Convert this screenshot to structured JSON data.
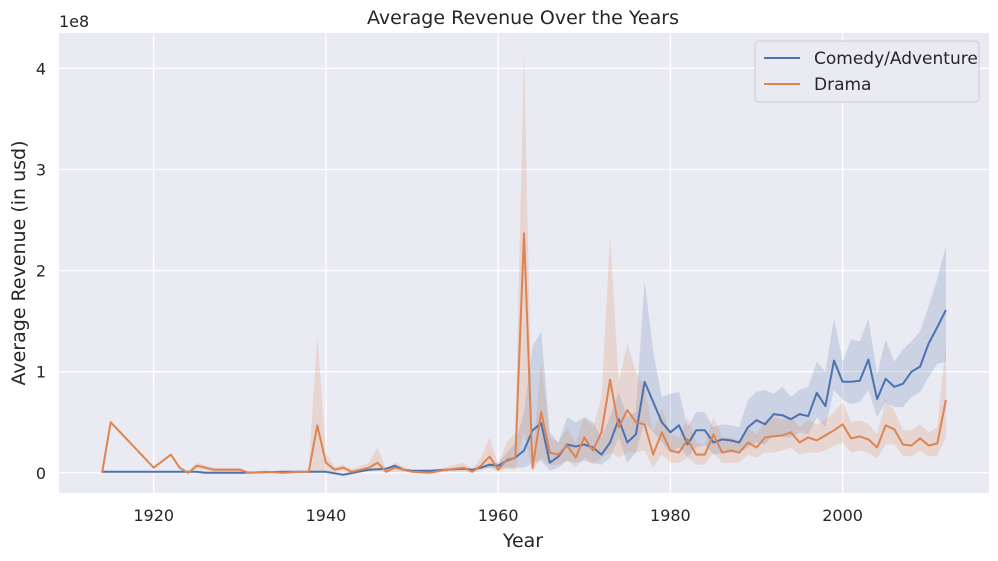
{
  "chart_data": {
    "type": "line",
    "title": "Average Revenue Over the Years",
    "xlabel": "Year",
    "ylabel": "Average Revenue (in usd)",
    "y_scale_label": "1e8",
    "y_scale": 100000000,
    "xlim": [
      1909,
      2017
    ],
    "ylim": [
      -0.2,
      4.35
    ],
    "x_ticks": [
      1920,
      1940,
      1960,
      1980,
      2000
    ],
    "y_ticks": [
      0,
      1,
      2,
      3,
      4
    ],
    "grid": true,
    "legend_position": "top-right",
    "colors": {
      "background": "#eaeaf2",
      "grid": "#ffffff",
      "text": "#262626"
    },
    "series": [
      {
        "name": "Comedy/Adventure",
        "color": "#4c72b0",
        "x": [
          1914,
          1920,
          1925,
          1926,
          1930,
          1935,
          1940,
          1942,
          1945,
          1947,
          1948,
          1949,
          1950,
          1952,
          1954,
          1956,
          1957,
          1958,
          1959,
          1960,
          1961,
          1962,
          1963,
          1964,
          1965,
          1966,
          1967,
          1968,
          1969,
          1970,
          1971,
          1972,
          1973,
          1974,
          1975,
          1976,
          1977,
          1978,
          1979,
          1980,
          1981,
          1982,
          1983,
          1984,
          1985,
          1986,
          1987,
          1988,
          1989,
          1990,
          1991,
          1992,
          1993,
          1994,
          1995,
          1996,
          1997,
          1998,
          1999,
          2000,
          2001,
          2002,
          2003,
          2004,
          2005,
          2006,
          2007,
          2008,
          2009,
          2010,
          2011,
          2012
        ],
        "y": [
          0.01,
          0.01,
          0.01,
          0.0,
          0.0,
          0.01,
          0.01,
          -0.02,
          0.03,
          0.04,
          0.07,
          0.03,
          0.02,
          0.02,
          0.03,
          0.04,
          0.03,
          0.05,
          0.08,
          0.07,
          0.12,
          0.15,
          0.22,
          0.42,
          0.49,
          0.1,
          0.16,
          0.28,
          0.26,
          0.28,
          0.25,
          0.18,
          0.3,
          0.53,
          0.3,
          0.38,
          0.9,
          0.7,
          0.5,
          0.4,
          0.47,
          0.28,
          0.42,
          0.42,
          0.3,
          0.33,
          0.32,
          0.3,
          0.45,
          0.52,
          0.48,
          0.58,
          0.57,
          0.53,
          0.58,
          0.56,
          0.79,
          0.66,
          1.11,
          0.9,
          0.9,
          0.91,
          1.12,
          0.73,
          0.93,
          0.85,
          0.88,
          1.0,
          1.05,
          1.28,
          1.44,
          1.61
        ],
        "band_upper": [
          0.01,
          0.01,
          0.01,
          0.01,
          0.01,
          0.01,
          0.02,
          0.0,
          0.04,
          0.05,
          0.08,
          0.04,
          0.03,
          0.03,
          0.04,
          0.05,
          0.04,
          0.06,
          0.1,
          0.1,
          0.2,
          0.3,
          0.6,
          1.25,
          1.4,
          0.4,
          0.3,
          0.55,
          0.5,
          0.55,
          0.5,
          0.35,
          0.55,
          0.8,
          0.55,
          0.6,
          1.9,
          1.2,
          0.75,
          0.78,
          0.8,
          0.45,
          0.6,
          0.6,
          0.45,
          0.48,
          0.47,
          0.45,
          0.72,
          0.8,
          0.82,
          0.78,
          0.85,
          0.75,
          0.82,
          0.85,
          1.1,
          1.0,
          1.53,
          1.1,
          1.32,
          1.3,
          1.52,
          0.98,
          1.32,
          1.1,
          1.22,
          1.3,
          1.4,
          1.65,
          1.92,
          2.24
        ],
        "band_lower": [
          0.0,
          0.0,
          0.0,
          -0.01,
          -0.01,
          0.0,
          0.0,
          -0.03,
          0.02,
          0.03,
          0.06,
          0.02,
          0.01,
          0.01,
          0.02,
          0.03,
          0.02,
          0.04,
          0.05,
          0.04,
          0.05,
          0.05,
          0.05,
          0.1,
          0.12,
          0.02,
          0.05,
          0.12,
          0.1,
          0.12,
          0.1,
          0.08,
          0.15,
          0.35,
          0.1,
          0.2,
          0.5,
          0.4,
          0.3,
          0.2,
          0.25,
          0.16,
          0.25,
          0.28,
          0.18,
          0.2,
          0.2,
          0.2,
          0.25,
          0.3,
          0.28,
          0.38,
          0.35,
          0.35,
          0.4,
          0.38,
          0.55,
          0.45,
          0.82,
          0.72,
          0.68,
          0.7,
          0.82,
          0.55,
          0.7,
          0.65,
          0.65,
          0.75,
          0.8,
          0.95,
          1.08,
          1.1
        ]
      },
      {
        "name": "Drama",
        "color": "#dd8452",
        "x": [
          1914,
          1915,
          1920,
          1922,
          1923,
          1924,
          1925,
          1927,
          1930,
          1931,
          1933,
          1935,
          1937,
          1938,
          1939,
          1940,
          1941,
          1942,
          1943,
          1945,
          1946,
          1947,
          1948,
          1950,
          1952,
          1954,
          1956,
          1957,
          1958,
          1959,
          1960,
          1961,
          1962,
          1963,
          1964,
          1965,
          1966,
          1967,
          1968,
          1969,
          1970,
          1971,
          1972,
          1973,
          1974,
          1975,
          1976,
          1977,
          1978,
          1979,
          1980,
          1981,
          1982,
          1983,
          1984,
          1985,
          1986,
          1987,
          1988,
          1989,
          1990,
          1991,
          1992,
          1993,
          1994,
          1995,
          1996,
          1997,
          1998,
          1999,
          2000,
          2001,
          2002,
          2003,
          2004,
          2005,
          2006,
          2007,
          2008,
          2009,
          2010,
          2011,
          2012
        ],
        "y": [
          0.0,
          0.5,
          0.05,
          0.18,
          0.05,
          0.0,
          0.07,
          0.03,
          0.03,
          0.0,
          0.01,
          0.0,
          0.01,
          0.01,
          0.47,
          0.1,
          0.03,
          0.05,
          0.01,
          0.05,
          0.1,
          0.01,
          0.05,
          0.01,
          0.0,
          0.03,
          0.05,
          0.01,
          0.07,
          0.16,
          0.03,
          0.13,
          0.15,
          2.37,
          0.05,
          0.6,
          0.2,
          0.18,
          0.27,
          0.15,
          0.35,
          0.22,
          0.4,
          0.92,
          0.45,
          0.62,
          0.5,
          0.48,
          0.18,
          0.4,
          0.22,
          0.2,
          0.33,
          0.18,
          0.18,
          0.38,
          0.2,
          0.22,
          0.2,
          0.3,
          0.25,
          0.35,
          0.36,
          0.37,
          0.4,
          0.3,
          0.35,
          0.32,
          0.37,
          0.42,
          0.48,
          0.34,
          0.36,
          0.33,
          0.25,
          0.47,
          0.43,
          0.28,
          0.27,
          0.34,
          0.27,
          0.29,
          0.72
        ],
        "band_upper": [
          0.0,
          0.5,
          0.05,
          0.18,
          0.05,
          0.0,
          0.1,
          0.05,
          0.05,
          0.01,
          0.02,
          0.01,
          0.02,
          0.02,
          1.37,
          0.2,
          0.06,
          0.08,
          0.03,
          0.1,
          0.25,
          0.03,
          0.1,
          0.02,
          0.01,
          0.06,
          0.1,
          0.04,
          0.15,
          0.35,
          0.08,
          0.3,
          0.4,
          4.15,
          0.15,
          1.1,
          0.35,
          0.3,
          0.45,
          0.3,
          0.55,
          0.45,
          0.75,
          2.35,
          0.9,
          1.28,
          1.0,
          0.85,
          0.4,
          0.65,
          0.38,
          0.35,
          0.55,
          0.3,
          0.28,
          0.55,
          0.35,
          0.35,
          0.32,
          0.45,
          0.38,
          0.52,
          0.55,
          0.52,
          0.55,
          0.45,
          0.52,
          0.48,
          0.52,
          0.6,
          0.7,
          0.5,
          0.52,
          0.48,
          0.38,
          0.72,
          0.62,
          0.42,
          0.42,
          0.48,
          0.4,
          0.45,
          1.28
        ],
        "band_lower": [
          0.0,
          0.5,
          0.05,
          0.18,
          0.05,
          0.0,
          0.04,
          0.01,
          0.01,
          -0.01,
          0.0,
          -0.01,
          0.0,
          0.0,
          0.0,
          0.02,
          0.01,
          0.02,
          0.0,
          0.01,
          0.02,
          0.0,
          0.01,
          0.0,
          -0.01,
          0.01,
          0.01,
          0.0,
          0.02,
          0.05,
          0.01,
          0.04,
          0.03,
          0.4,
          0.01,
          0.15,
          0.08,
          0.08,
          0.12,
          0.05,
          0.15,
          0.08,
          0.15,
          0.2,
          0.15,
          0.2,
          0.2,
          0.22,
          0.05,
          0.18,
          0.1,
          0.1,
          0.15,
          0.08,
          0.08,
          0.2,
          0.1,
          0.1,
          0.1,
          0.18,
          0.15,
          0.2,
          0.2,
          0.22,
          0.25,
          0.18,
          0.2,
          0.2,
          0.22,
          0.27,
          0.3,
          0.2,
          0.22,
          0.2,
          0.14,
          0.28,
          0.28,
          0.17,
          0.16,
          0.22,
          0.16,
          0.17,
          0.35
        ]
      }
    ]
  }
}
